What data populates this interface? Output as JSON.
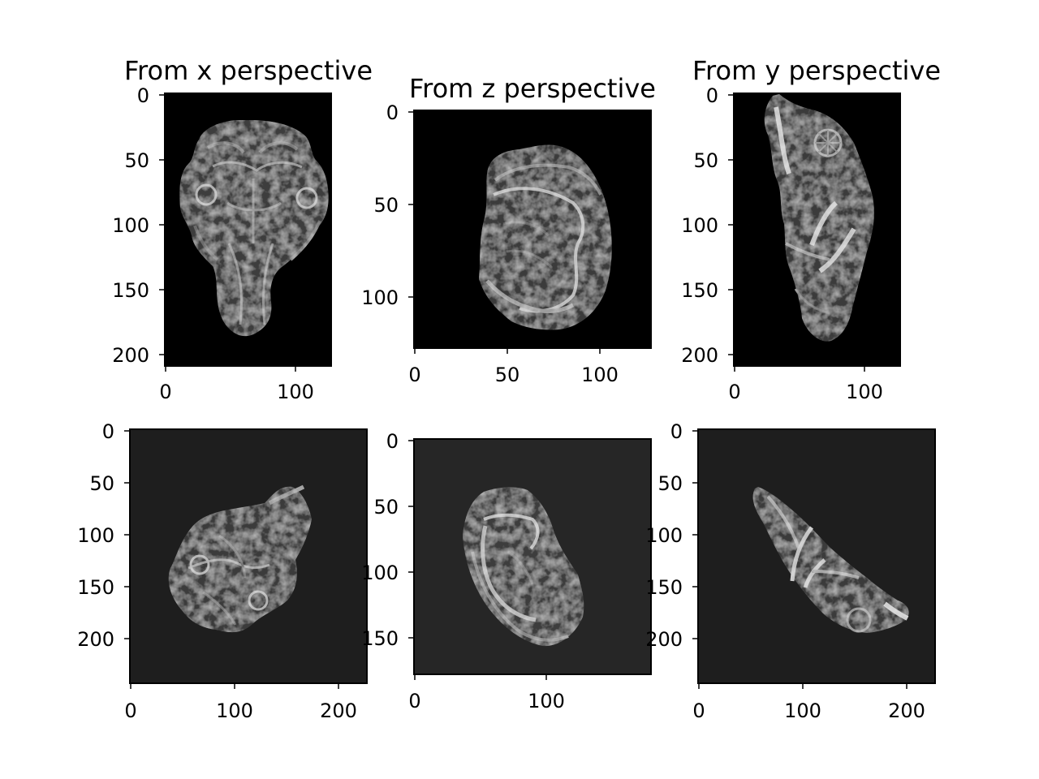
{
  "figure": {
    "panels": [
      {
        "id": "top-left",
        "title": "From x perspective",
        "xticks": [
          "0",
          "100"
        ],
        "yticks": [
          "0",
          "50",
          "100",
          "150",
          "200"
        ],
        "background": "#000000"
      },
      {
        "id": "top-middle",
        "title": "From z perspective",
        "xticks": [
          "0",
          "50",
          "100"
        ],
        "yticks": [
          "0",
          "50",
          "100"
        ],
        "background": "#000000"
      },
      {
        "id": "top-right",
        "title": "From y perspective",
        "xticks": [
          "0",
          "100"
        ],
        "yticks": [
          "0",
          "50",
          "100",
          "150",
          "200"
        ],
        "background": "#000000"
      },
      {
        "id": "bottom-left",
        "title": "",
        "xticks": [
          "0",
          "100",
          "200"
        ],
        "yticks": [
          "0",
          "50",
          "100",
          "150",
          "200"
        ],
        "background": "#1e1e1e"
      },
      {
        "id": "bottom-middle",
        "title": "",
        "xticks": [
          "0",
          "100"
        ],
        "yticks": [
          "0",
          "50",
          "100",
          "150"
        ],
        "background": "#262626"
      },
      {
        "id": "bottom-right",
        "title": "",
        "xticks": [
          "0",
          "100",
          "200"
        ],
        "yticks": [
          "0",
          "50",
          "100",
          "150",
          "200"
        ],
        "background": "#1e1e1e"
      }
    ]
  }
}
